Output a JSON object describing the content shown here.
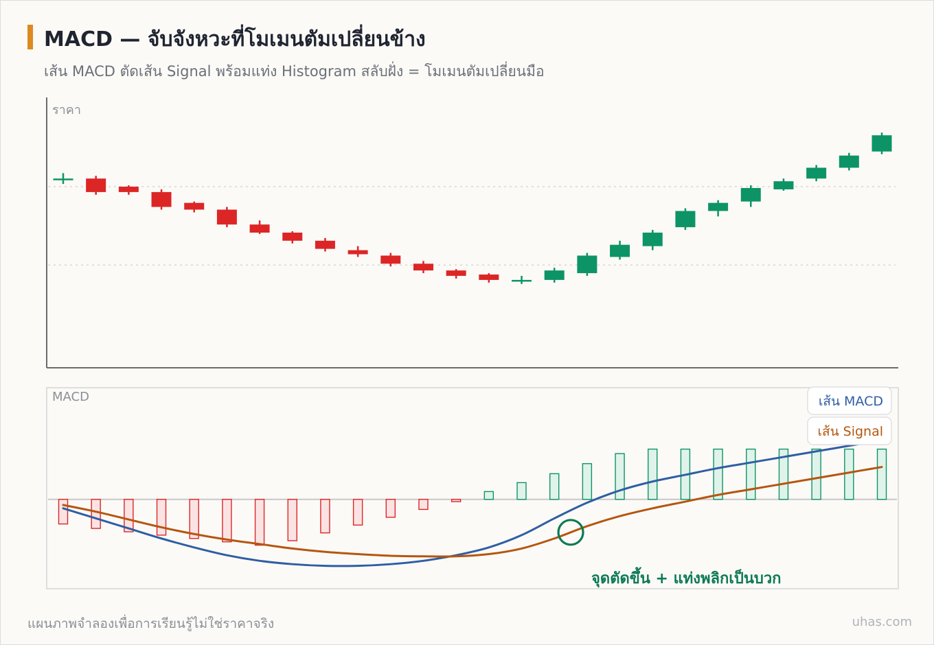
{
  "header": {
    "title": "MACD — จับจังหวะที่โมเมนตัมเปลี่ยนข้าง",
    "subtitle": "เส้น MACD ตัดเส้น Signal พร้อมแท่ง Histogram สลับฝั่ง = โมเมนตัมเปลี่ยนมือ"
  },
  "footer": {
    "note": "แผนภาพจำลองเพื่อการเรียนรู้ไม่ใช่ราคาจริง",
    "brand": "uhas.com"
  },
  "colors": {
    "up": "#0d9466",
    "down": "#dc2626",
    "macd_line": "#2f5ea3",
    "signal_line": "#b5560f",
    "hist_neg_fill": "#fbe3e3",
    "hist_neg_stroke": "#dc2626",
    "hist_pos_fill": "#dff3ea",
    "hist_pos_stroke": "#0d9466",
    "crossover": "#0d7a55"
  },
  "chart_data": [
    {
      "type": "candlestick",
      "ylabel": "ราคา",
      "ylim": [
        0,
        100
      ],
      "reference_lines": [
        67,
        38
      ],
      "grid": false,
      "candles": [
        {
          "open": 70,
          "close": 70,
          "high": 72,
          "low": 68
        },
        {
          "open": 70,
          "close": 65,
          "high": 71,
          "low": 64
        },
        {
          "open": 67,
          "close": 65,
          "high": 67.5,
          "low": 64
        },
        {
          "open": 65,
          "close": 59.5,
          "high": 66,
          "low": 58.5
        },
        {
          "open": 61,
          "close": 58.5,
          "high": 61.5,
          "low": 57.5
        },
        {
          "open": 58.5,
          "close": 53,
          "high": 59.5,
          "low": 52
        },
        {
          "open": 53,
          "close": 50,
          "high": 54.5,
          "low": 49.5
        },
        {
          "open": 50,
          "close": 47,
          "high": 50.5,
          "low": 46
        },
        {
          "open": 47,
          "close": 44,
          "high": 48,
          "low": 43
        },
        {
          "open": 43.5,
          "close": 42,
          "high": 45,
          "low": 41
        },
        {
          "open": 41.5,
          "close": 38.5,
          "high": 42.5,
          "low": 37.5
        },
        {
          "open": 38.5,
          "close": 36,
          "high": 39.5,
          "low": 35
        },
        {
          "open": 36,
          "close": 34,
          "high": 36.5,
          "low": 33
        },
        {
          "open": 34.5,
          "close": 32.5,
          "high": 35,
          "low": 31.5
        },
        {
          "open": 32.5,
          "close": 32.5,
          "high": 34,
          "low": 31
        },
        {
          "open": 32.5,
          "close": 36,
          "high": 37,
          "low": 31.5
        },
        {
          "open": 35,
          "close": 41.5,
          "high": 42.5,
          "low": 34
        },
        {
          "open": 41,
          "close": 45.5,
          "high": 47,
          "low": 40
        },
        {
          "open": 45,
          "close": 50,
          "high": 51,
          "low": 43.5
        },
        {
          "open": 52,
          "close": 58,
          "high": 59,
          "low": 51
        },
        {
          "open": 58,
          "close": 61,
          "high": 62,
          "low": 56
        },
        {
          "open": 61.5,
          "close": 66.5,
          "high": 67.5,
          "low": 59.5
        },
        {
          "open": 66,
          "close": 69,
          "high": 70,
          "low": 65.5
        },
        {
          "open": 70,
          "close": 74,
          "high": 75,
          "low": 69
        },
        {
          "open": 74,
          "close": 78.5,
          "high": 79.5,
          "low": 73
        },
        {
          "open": 80,
          "close": 86,
          "high": 87,
          "low": 79
        }
      ]
    },
    {
      "type": "line",
      "ylabel": "MACD",
      "ylim": [
        -8,
        10
      ],
      "zero_line": true,
      "legend_placement": "top-right",
      "series": [
        {
          "name": "เส้น MACD",
          "values": [
            -0.8,
            -1.7,
            -2.6,
            -3.5,
            -4.3,
            -5.0,
            -5.5,
            -5.8,
            -5.95,
            -5.95,
            -5.8,
            -5.5,
            -5.0,
            -4.3,
            -3.2,
            -1.7,
            -0.3,
            0.8,
            1.6,
            2.2,
            2.8,
            3.3,
            3.8,
            4.3,
            4.8,
            5.3
          ]
        },
        {
          "name": "เส้น Signal",
          "values": [
            -0.5,
            -1.1,
            -1.8,
            -2.5,
            -3.1,
            -3.6,
            -4.0,
            -4.4,
            -4.7,
            -4.9,
            -5.05,
            -5.1,
            -5.1,
            -4.9,
            -4.4,
            -3.5,
            -2.4,
            -1.5,
            -0.8,
            -0.2,
            0.4,
            0.9,
            1.4,
            1.9,
            2.4,
            2.9
          ]
        },
        {
          "name": "Histogram",
          "type": "bar",
          "values": [
            -2.2,
            -2.6,
            -2.9,
            -3.2,
            -3.5,
            -3.8,
            -4.1,
            -3.7,
            -3.0,
            -2.3,
            -1.6,
            -0.9,
            -0.2,
            0.7,
            1.5,
            2.3,
            3.2,
            4.1,
            4.5,
            4.5,
            4.5,
            4.5,
            4.5,
            4.5,
            4.5,
            4.5
          ]
        }
      ],
      "annotation": {
        "label": "จุดตัดขึ้น + แท่งพลิกเป็นบวก",
        "at_index": 15.5
      }
    }
  ]
}
